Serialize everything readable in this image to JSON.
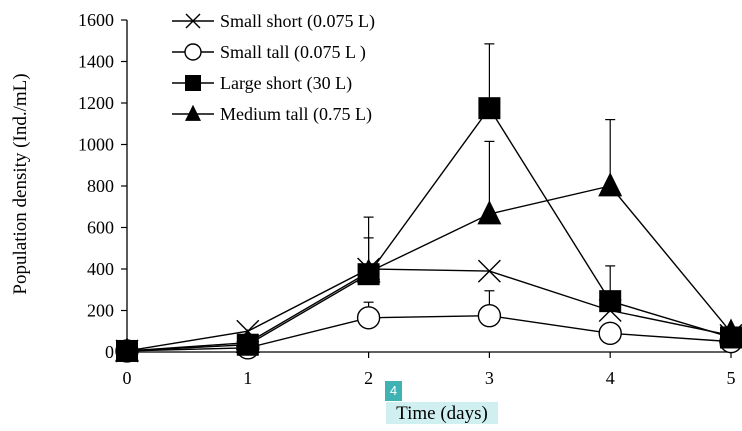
{
  "chart_data": {
    "type": "line",
    "title": "",
    "xlabel": "Time (days)",
    "ylabel": "Population density (Ind./mL)",
    "x": [
      0,
      1,
      2,
      3,
      4,
      5
    ],
    "xlim": [
      0,
      5
    ],
    "ylim": [
      0,
      1600
    ],
    "x_ticks": [
      "0",
      "1",
      "2",
      "3",
      "4",
      "5"
    ],
    "y_ticks": [
      "0",
      "200",
      "400",
      "600",
      "800",
      "1000",
      "1200",
      "1400",
      "1600"
    ],
    "grid": false,
    "legend_position": "top-left",
    "series": [
      {
        "name": "Small short (0.075 L)",
        "marker": "x",
        "values": [
          5,
          100,
          400,
          390,
          200,
          80
        ],
        "error": [
          0,
          0,
          150,
          0,
          0,
          0
        ]
      },
      {
        "name": "Small tall (0.075 L )",
        "marker": "open-circle",
        "values": [
          5,
          20,
          165,
          175,
          90,
          50
        ],
        "error": [
          0,
          0,
          75,
          120,
          0,
          0
        ]
      },
      {
        "name": "Large short (30 L)",
        "marker": "filled-square",
        "values": [
          5,
          35,
          375,
          1175,
          245,
          70
        ],
        "error": [
          0,
          0,
          275,
          310,
          170,
          0
        ]
      },
      {
        "name": "Medium tall (0.75 L)",
        "marker": "filled-triangle",
        "values": [
          5,
          45,
          385,
          665,
          800,
          95
        ],
        "error": [
          0,
          0,
          0,
          350,
          320,
          0
        ]
      }
    ]
  },
  "overlay_badge": "4"
}
